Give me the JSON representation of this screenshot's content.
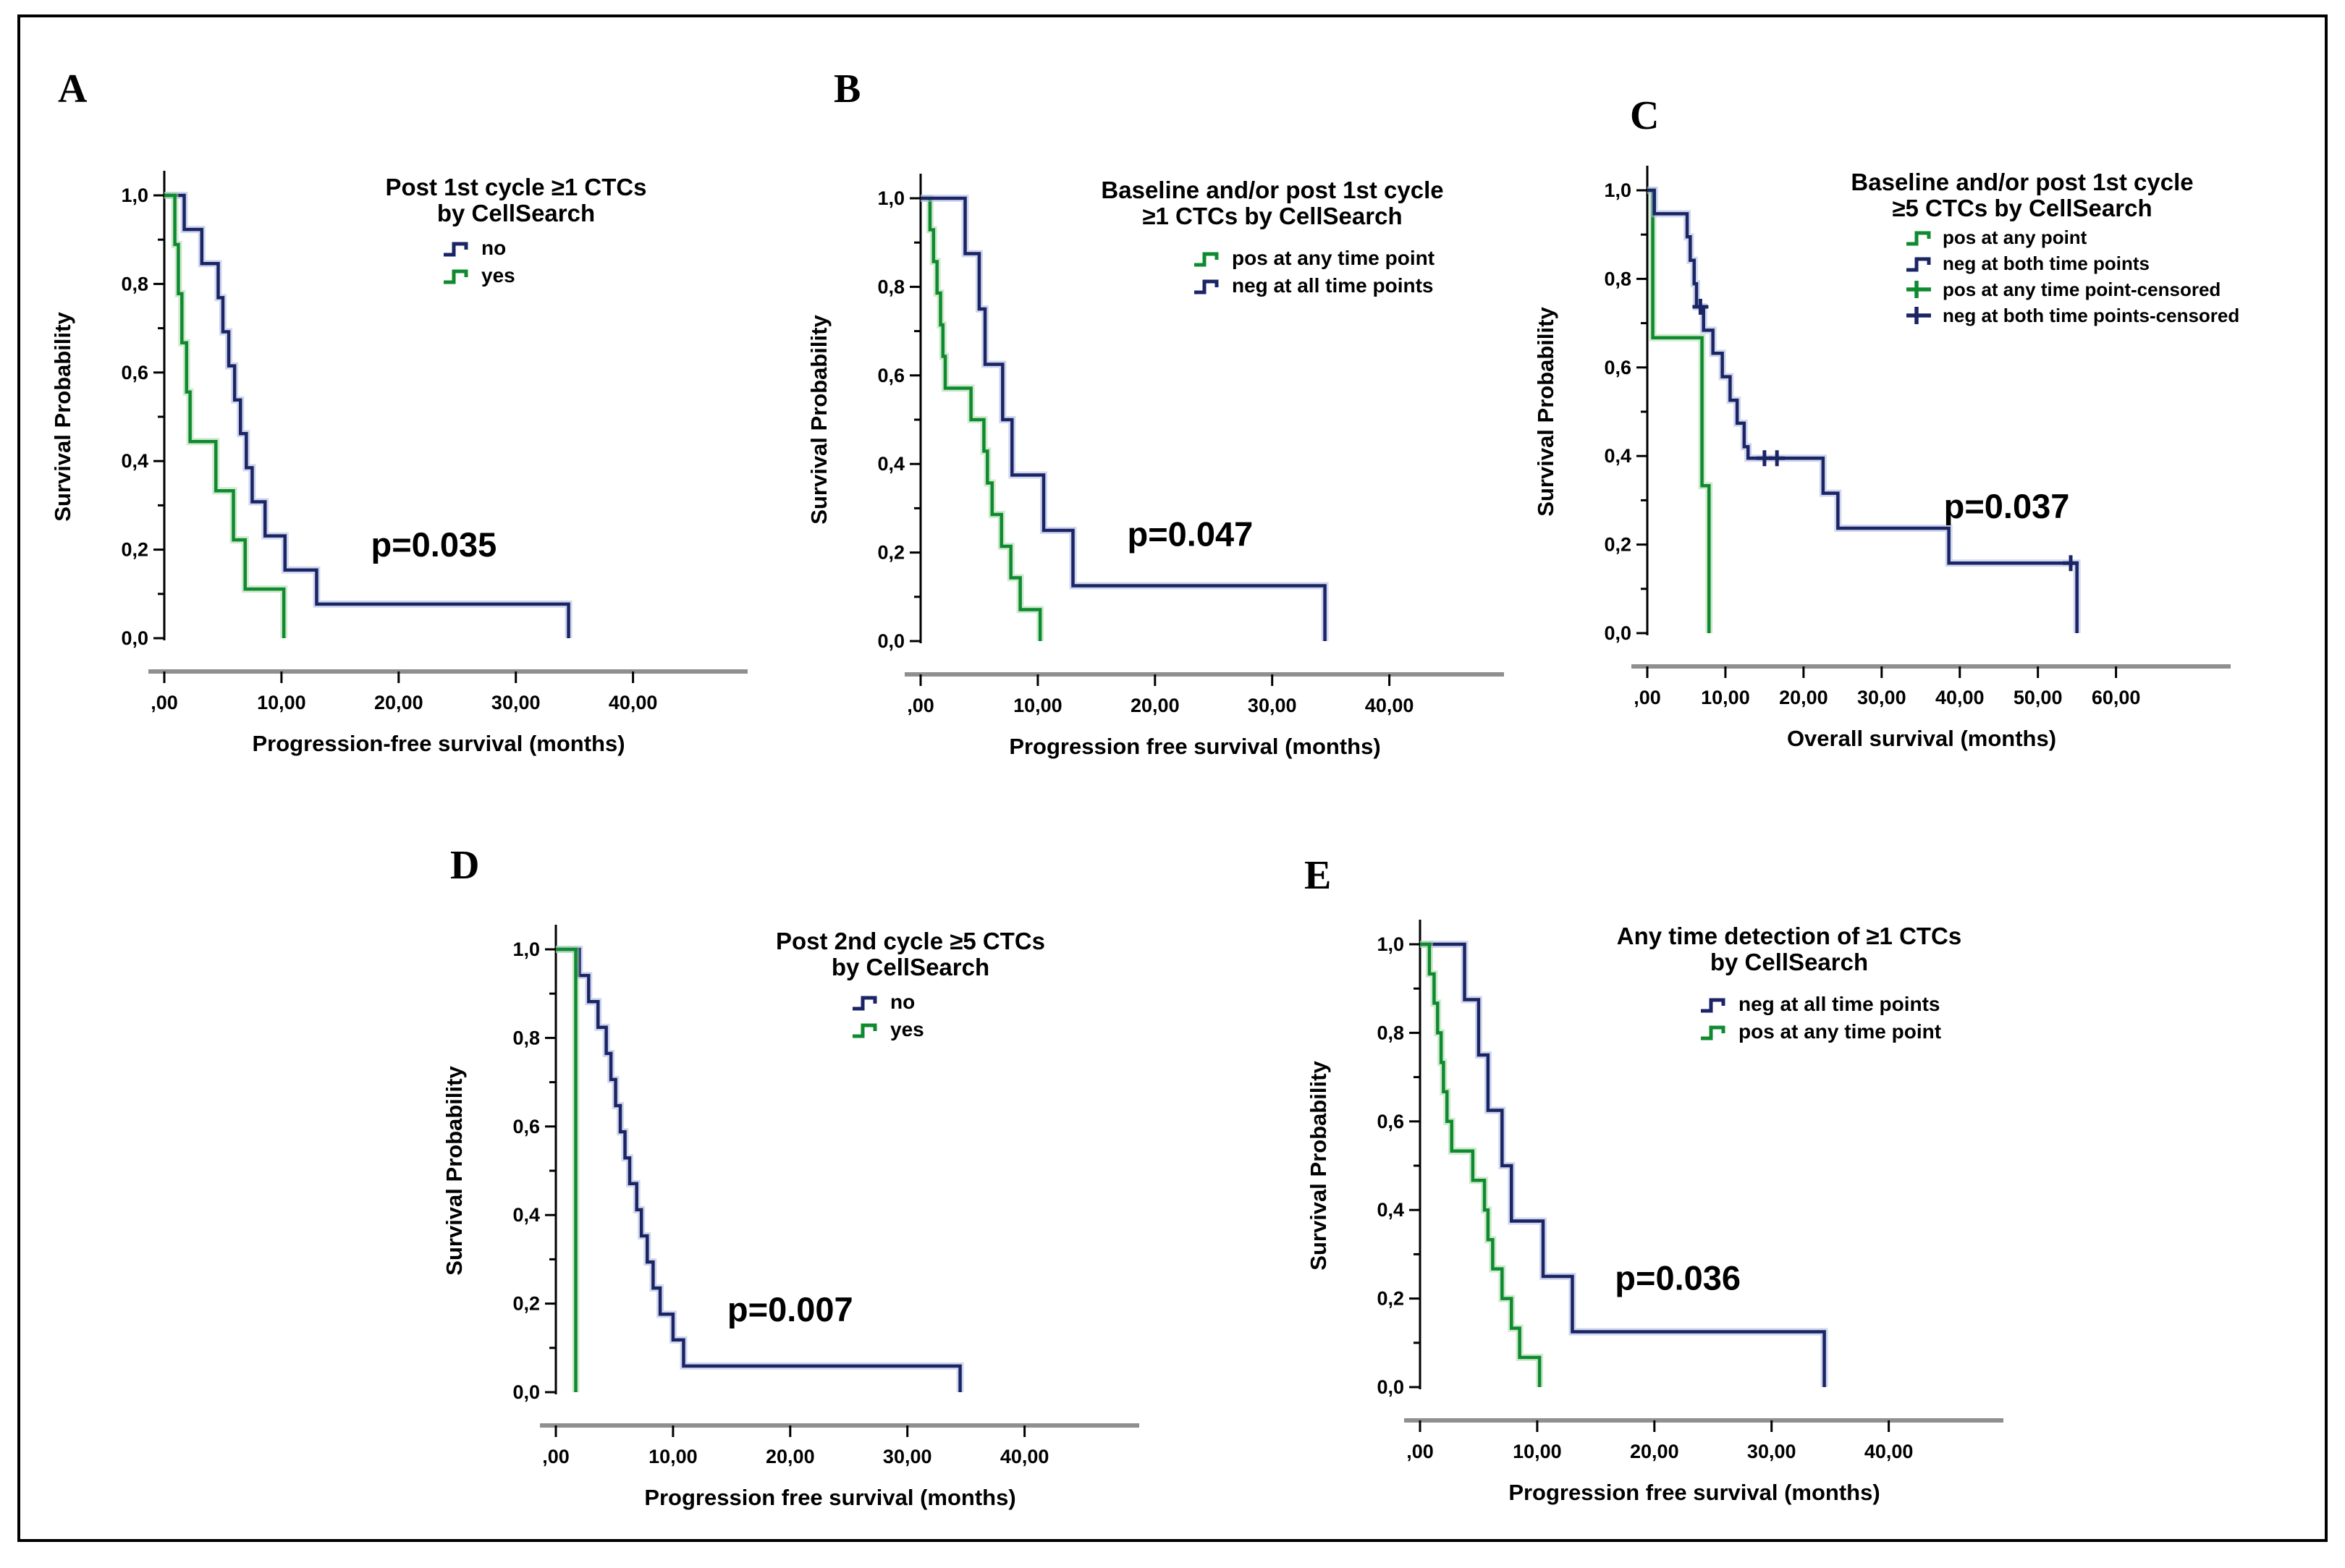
{
  "figure": {
    "background": "#ffffff",
    "border_color": "#000000"
  },
  "colors": {
    "navy": "#1b2464",
    "green": "#0f8a2f",
    "navy_halo": "#aab6e0",
    "green_halo": "#a8d8a8",
    "axis_gray": "#8f8f8f",
    "text": "#000000"
  },
  "chart_data": [
    {
      "type": "km-step-line",
      "panel_label": "A",
      "title_lines": [
        "Post 1st cycle ≥1 CTCs",
        "by CellSearch"
      ],
      "x_label": "Progression-free survival (months)",
      "y_label": "Survival Probability",
      "p_value": "p=0.035",
      "p_pos": [
        23,
        0.185
      ],
      "x_scale_max": 42,
      "x_ticks": [
        0,
        10,
        20,
        30,
        40
      ],
      "x_tick_labels": [
        ",00",
        "10,00",
        "20,00",
        "30,00",
        "40,00"
      ],
      "y_tick_labels": [
        "0,0",
        "0,2",
        "0,4",
        "0,6",
        "0,8",
        "1,0"
      ],
      "ylim": [
        0,
        1
      ],
      "grid": false,
      "legend_position": "top-right-inside",
      "legend": [
        {
          "label": "no",
          "color": "navy",
          "glyph": "step"
        },
        {
          "label": "yes",
          "color": "green",
          "glyph": "step"
        }
      ],
      "series": [
        {
          "name": "no",
          "color": "navy",
          "drops": [
            [
              1.7,
              0.923
            ],
            [
              3.2,
              0.846
            ],
            [
              4.6,
              0.769
            ],
            [
              5.0,
              0.692
            ],
            [
              5.5,
              0.615
            ],
            [
              6.0,
              0.538
            ],
            [
              6.5,
              0.462
            ],
            [
              7.0,
              0.385
            ],
            [
              7.5,
              0.308
            ],
            [
              8.6,
              0.231
            ],
            [
              10.3,
              0.154
            ],
            [
              13.0,
              0.077
            ],
            [
              34.5,
              0
            ]
          ]
        },
        {
          "name": "yes",
          "color": "green",
          "drops": [
            [
              0.9,
              0.889
            ],
            [
              1.2,
              0.778
            ],
            [
              1.5,
              0.667
            ],
            [
              1.9,
              0.556
            ],
            [
              2.2,
              0.444
            ],
            [
              4.4,
              0.333
            ],
            [
              5.9,
              0.222
            ],
            [
              6.9,
              0.111
            ],
            [
              10.2,
              0
            ]
          ]
        }
      ]
    },
    {
      "type": "km-step-line",
      "panel_label": "B",
      "title_lines": [
        "Baseline and/or post 1st cycle",
        "≥1 CTCs by CellSearch"
      ],
      "x_label": "Progression free survival (months)",
      "y_label": "Survival Probability",
      "p_value": "p=0.047",
      "p_pos": [
        23,
        0.215
      ],
      "x_scale_max": 42,
      "x_ticks": [
        0,
        10,
        20,
        30,
        40
      ],
      "x_tick_labels": [
        ",00",
        "10,00",
        "20,00",
        "30,00",
        "40,00"
      ],
      "y_tick_labels": [
        "0,0",
        "0,2",
        "0,4",
        "0,6",
        "0,8",
        "1,0"
      ],
      "ylim": [
        0,
        1
      ],
      "grid": false,
      "legend_position": "top-right-inside",
      "legend": [
        {
          "label": "pos at any time point",
          "color": "green",
          "glyph": "step"
        },
        {
          "label": "neg at all time points",
          "color": "navy",
          "glyph": "step"
        }
      ],
      "series": [
        {
          "name": "pos at any time point",
          "color": "green",
          "drops": [
            [
              0.8,
              0.929
            ],
            [
              1.1,
              0.857
            ],
            [
              1.4,
              0.786
            ],
            [
              1.7,
              0.714
            ],
            [
              1.9,
              0.643
            ],
            [
              2.1,
              0.571
            ],
            [
              4.3,
              0.5
            ],
            [
              5.4,
              0.429
            ],
            [
              5.7,
              0.357
            ],
            [
              6.1,
              0.286
            ],
            [
              6.9,
              0.214
            ],
            [
              7.7,
              0.143
            ],
            [
              8.5,
              0.071
            ],
            [
              10.2,
              0
            ]
          ]
        },
        {
          "name": "neg at all time points",
          "color": "navy",
          "drops": [
            [
              3.8,
              0.875
            ],
            [
              5.0,
              0.75
            ],
            [
              5.5,
              0.625
            ],
            [
              7.0,
              0.5
            ],
            [
              7.8,
              0.375
            ],
            [
              10.5,
              0.25
            ],
            [
              13.0,
              0.125
            ],
            [
              34.5,
              0
            ]
          ]
        }
      ]
    },
    {
      "type": "km-step-line",
      "panel_label": "C",
      "title_lines": [
        "Baseline and/or post 1st cycle",
        "≥5 CTCs by CellSearch"
      ],
      "x_label": "Overall survival (months)",
      "y_label": "Survival Probability",
      "p_value": "p=0.037",
      "p_pos": [
        46,
        0.26
      ],
      "x_scale_max": 63,
      "x_ticks": [
        0,
        10,
        20,
        30,
        40,
        50,
        60
      ],
      "x_tick_labels": [
        ",00",
        "10,00",
        "20,00",
        "30,00",
        "40,00",
        "50,00",
        "60,00"
      ],
      "y_tick_labels": [
        "0,0",
        "0,2",
        "0,4",
        "0,6",
        "0,8",
        "1,0"
      ],
      "ylim": [
        0,
        1
      ],
      "grid": false,
      "legend_position": "top-right-inside",
      "legend": [
        {
          "label": "pos at any point",
          "color": "green",
          "glyph": "step"
        },
        {
          "label": "neg at both time points",
          "color": "navy",
          "glyph": "step"
        },
        {
          "label": "pos at any time point-censored",
          "color": "green",
          "glyph": "censor"
        },
        {
          "label": "neg at both time points-censored",
          "color": "navy",
          "glyph": "censor"
        }
      ],
      "series": [
        {
          "name": "pos at any point",
          "color": "green",
          "drops": [
            [
              0.7,
              0.667
            ],
            [
              7.0,
              0.333
            ],
            [
              7.9,
              0
            ]
          ]
        },
        {
          "name": "neg at both time points",
          "color": "navy",
          "drops": [
            [
              0.9,
              0.947
            ],
            [
              5.1,
              0.895
            ],
            [
              5.5,
              0.842
            ],
            [
              6.0,
              0.789
            ],
            [
              6.3,
              0.737
            ],
            [
              7.2,
              0.684
            ],
            [
              8.4,
              0.632
            ],
            [
              9.6,
              0.579
            ],
            [
              10.6,
              0.526
            ],
            [
              11.5,
              0.474
            ],
            [
              12.4,
              0.421
            ],
            [
              12.9,
              0.395
            ],
            [
              22.5,
              0.316
            ],
            [
              24.4,
              0.237
            ],
            [
              38.6,
              0.158
            ],
            [
              55.0,
              0
            ]
          ],
          "censored": [
            [
              6.8,
              0.737
            ],
            [
              15.0,
              0.395
            ],
            [
              16.6,
              0.395
            ],
            [
              54.2,
              0.158
            ]
          ]
        }
      ]
    },
    {
      "type": "km-step-line",
      "panel_label": "D",
      "title_lines": [
        "Post 2nd cycle ≥5 CTCs",
        "by CellSearch"
      ],
      "x_label": "Progression free survival (months)",
      "y_label": "Survival Probability",
      "p_value": "p=0.007",
      "p_pos": [
        20,
        0.16
      ],
      "x_scale_max": 42,
      "x_ticks": [
        0,
        10,
        20,
        30,
        40
      ],
      "x_tick_labels": [
        ",00",
        "10,00",
        "20,00",
        "30,00",
        "40,00"
      ],
      "y_tick_labels": [
        "0,0",
        "0,2",
        "0,4",
        "0,6",
        "0,8",
        "1,0"
      ],
      "ylim": [
        0,
        1
      ],
      "grid": false,
      "legend_position": "top-right-inside",
      "legend": [
        {
          "label": "no",
          "color": "navy",
          "glyph": "step"
        },
        {
          "label": "yes",
          "color": "green",
          "glyph": "step"
        }
      ],
      "series": [
        {
          "name": "no",
          "color": "navy",
          "drops": [
            [
              2.0,
              0.941
            ],
            [
              2.8,
              0.882
            ],
            [
              3.6,
              0.824
            ],
            [
              4.3,
              0.765
            ],
            [
              4.7,
              0.706
            ],
            [
              5.1,
              0.647
            ],
            [
              5.5,
              0.588
            ],
            [
              5.9,
              0.529
            ],
            [
              6.3,
              0.471
            ],
            [
              6.9,
              0.412
            ],
            [
              7.3,
              0.353
            ],
            [
              7.8,
              0.294
            ],
            [
              8.3,
              0.235
            ],
            [
              8.9,
              0.176
            ],
            [
              10.0,
              0.118
            ],
            [
              10.9,
              0.059
            ],
            [
              34.5,
              0
            ]
          ]
        },
        {
          "name": "yes",
          "color": "green",
          "drops": [
            [
              1.7,
              0
            ]
          ]
        }
      ]
    },
    {
      "type": "km-step-line",
      "panel_label": "E",
      "title_lines": [
        "Any time detection of ≥1 CTCs",
        "by CellSearch"
      ],
      "x_label": "Progression free survival (months)",
      "y_label": "Survival Probability",
      "p_value": "p=0.036",
      "p_pos": [
        22,
        0.22
      ],
      "x_scale_max": 42,
      "x_ticks": [
        0,
        10,
        20,
        30,
        40
      ],
      "x_tick_labels": [
        ",00",
        "10,00",
        "20,00",
        "30,00",
        "40,00"
      ],
      "y_tick_labels": [
        "0,0",
        "0,2",
        "0,4",
        "0,6",
        "0,8",
        "1,0"
      ],
      "ylim": [
        0,
        1
      ],
      "grid": false,
      "legend_position": "top-right-inside",
      "legend": [
        {
          "label": "neg at all time points",
          "color": "navy",
          "glyph": "step"
        },
        {
          "label": "pos at any time point",
          "color": "green",
          "glyph": "step"
        }
      ],
      "series": [
        {
          "name": "neg at all time points",
          "color": "navy",
          "drops": [
            [
              3.8,
              0.875
            ],
            [
              5.0,
              0.75
            ],
            [
              5.8,
              0.625
            ],
            [
              7.0,
              0.5
            ],
            [
              7.8,
              0.375
            ],
            [
              10.5,
              0.25
            ],
            [
              13.0,
              0.125
            ],
            [
              34.5,
              0
            ]
          ]
        },
        {
          "name": "pos at any time point",
          "color": "green",
          "drops": [
            [
              0.8,
              0.933
            ],
            [
              1.2,
              0.867
            ],
            [
              1.5,
              0.8
            ],
            [
              1.8,
              0.733
            ],
            [
              2.0,
              0.667
            ],
            [
              2.3,
              0.6
            ],
            [
              2.7,
              0.533
            ],
            [
              4.5,
              0.467
            ],
            [
              5.5,
              0.4
            ],
            [
              5.8,
              0.333
            ],
            [
              6.2,
              0.267
            ],
            [
              7.0,
              0.2
            ],
            [
              7.8,
              0.133
            ],
            [
              8.5,
              0.067
            ],
            [
              10.2,
              0
            ]
          ]
        }
      ]
    }
  ]
}
